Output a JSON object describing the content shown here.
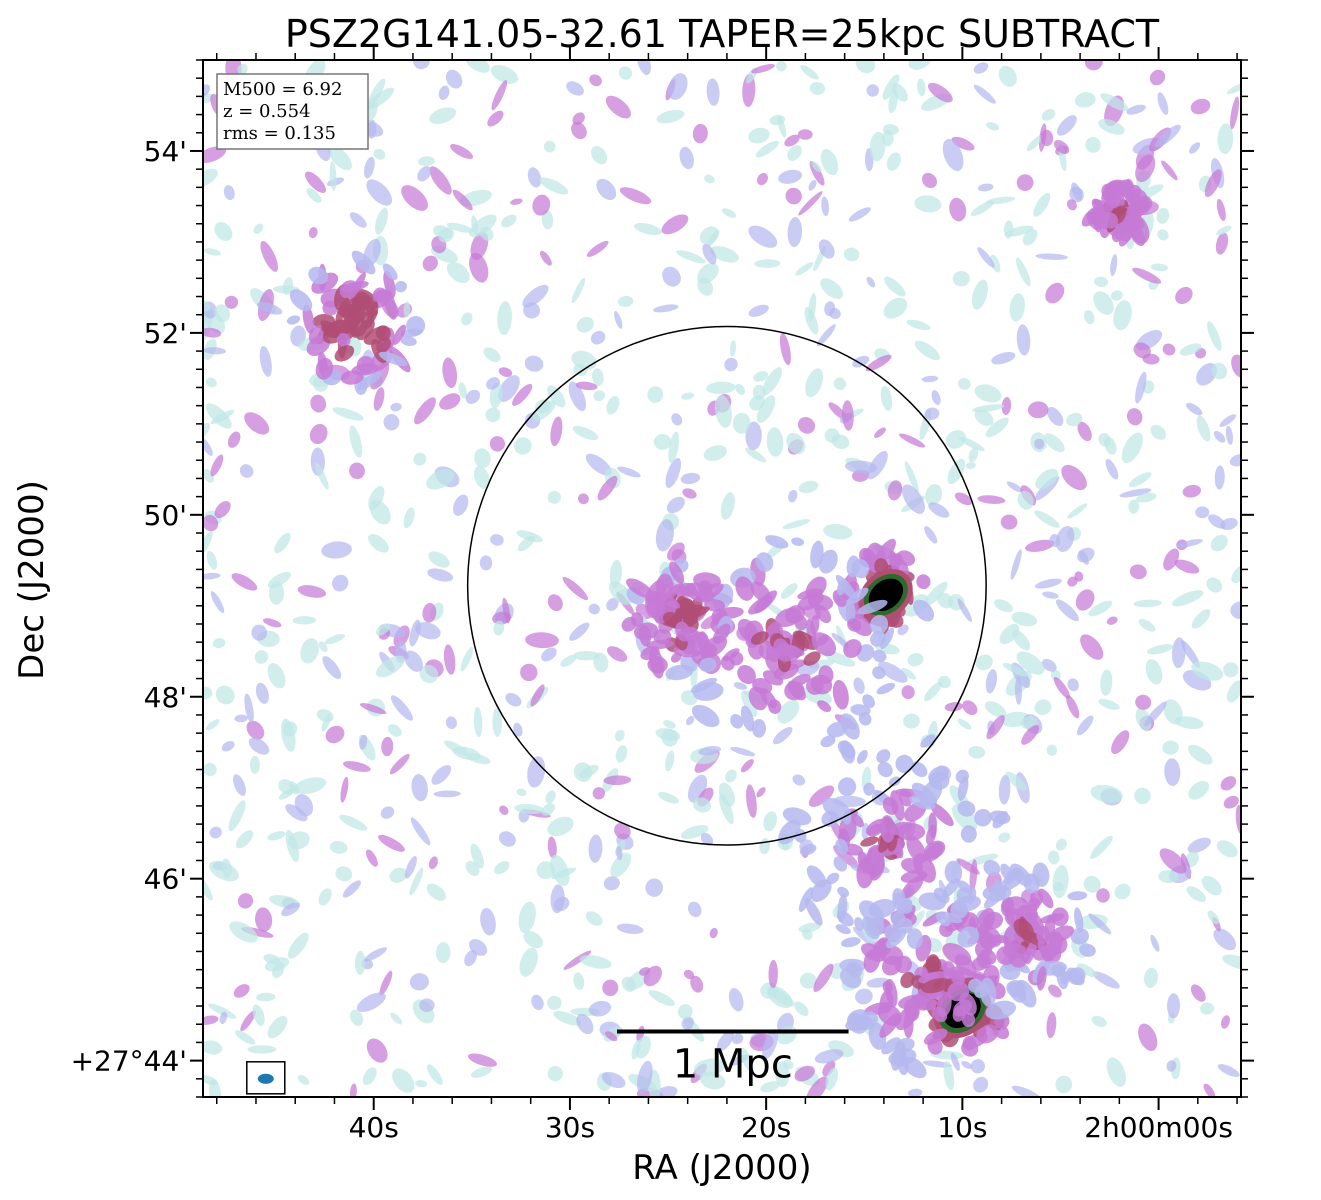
{
  "chart_data": {
    "type": "heatmap",
    "title": "PSZ2G141.05-32.61 TAPER=25kpc SUBTRACT",
    "xlabel": "RA (J2000)",
    "ylabel": "Dec (J2000)",
    "x_tick_labels": [
      "40s",
      "30s",
      "20s",
      "10s",
      "2h00m00s"
    ],
    "x_tick_seconds": [
      40,
      30,
      20,
      10,
      0
    ],
    "y_tick_labels": [
      "54'",
      "52'",
      "50'",
      "48'",
      "46'",
      "+27°44'"
    ],
    "y_tick_arcmin": [
      54,
      52,
      50,
      48,
      46,
      44
    ],
    "xlim_seconds": [
      48.7,
      -4.2
    ],
    "ylim_arcmin": [
      43.6,
      55.0
    ],
    "colormap": [
      "#bfe8e6",
      "#b5b9ee",
      "#c67ad6",
      "#b04e74",
      "#2e6a2c",
      "#000000"
    ],
    "info_box": [
      "M500 = 6.92",
      "z = 0.554",
      "rms = 0.135"
    ],
    "circle": {
      "center_ra_seconds": 22.0,
      "center_dec_arcmin": 49.22,
      "radius_arcmin": 2.85
    },
    "scale_bar": {
      "label": "1 Mpc",
      "start_ra_seconds": 27.6,
      "end_ra_seconds": 15.8,
      "dec_arcmin": 44.32
    },
    "beam": {
      "ra_seconds": 45.5,
      "dec_arcmin": 43.8
    },
    "emission_sources": [
      {
        "name": "central-compact",
        "ra_seconds": 13.9,
        "dec_arcmin": 49.12,
        "peak": 1.0,
        "sigma_arcmin": 0.28,
        "extent_arcmin": 0.5
      },
      {
        "name": "central-diffuse",
        "ra_seconds": 19.0,
        "dec_arcmin": 48.55,
        "peak": 0.45,
        "sigma_arcmin": 0.75,
        "extent_arcmin": 1.2
      },
      {
        "name": "central-west-patch",
        "ra_seconds": 24.5,
        "dec_arcmin": 48.85,
        "peak": 0.5,
        "sigma_arcmin": 0.45,
        "extent_arcmin": 0.6
      },
      {
        "name": "south-east-compact",
        "ra_seconds": 10.0,
        "dec_arcmin": 44.55,
        "peak": 0.95,
        "sigma_arcmin": 0.3,
        "extent_arcmin": 0.5
      },
      {
        "name": "south-east-diffuse",
        "ra_seconds": 11.5,
        "dec_arcmin": 44.9,
        "peak": 0.45,
        "sigma_arcmin": 0.7,
        "extent_arcmin": 1.0
      },
      {
        "name": "south-chain",
        "ra_seconds": 13.5,
        "dec_arcmin": 46.4,
        "peak": 0.45,
        "sigma_arcmin": 0.5,
        "extent_arcmin": 1.2
      },
      {
        "name": "north-east-source",
        "ra_seconds": 41.0,
        "dec_arcmin": 52.1,
        "peak": 0.6,
        "sigma_arcmin": 0.45,
        "extent_arcmin": 0.7
      },
      {
        "name": "north-west-source",
        "ra_seconds": 2.0,
        "dec_arcmin": 53.3,
        "peak": 0.5,
        "sigma_arcmin": 0.25,
        "extent_arcmin": 0.3
      },
      {
        "name": "east-edge-source",
        "ra_seconds": 7.0,
        "dec_arcmin": 45.4,
        "peak": 0.45,
        "sigma_arcmin": 0.45,
        "extent_arcmin": 0.8
      }
    ]
  }
}
